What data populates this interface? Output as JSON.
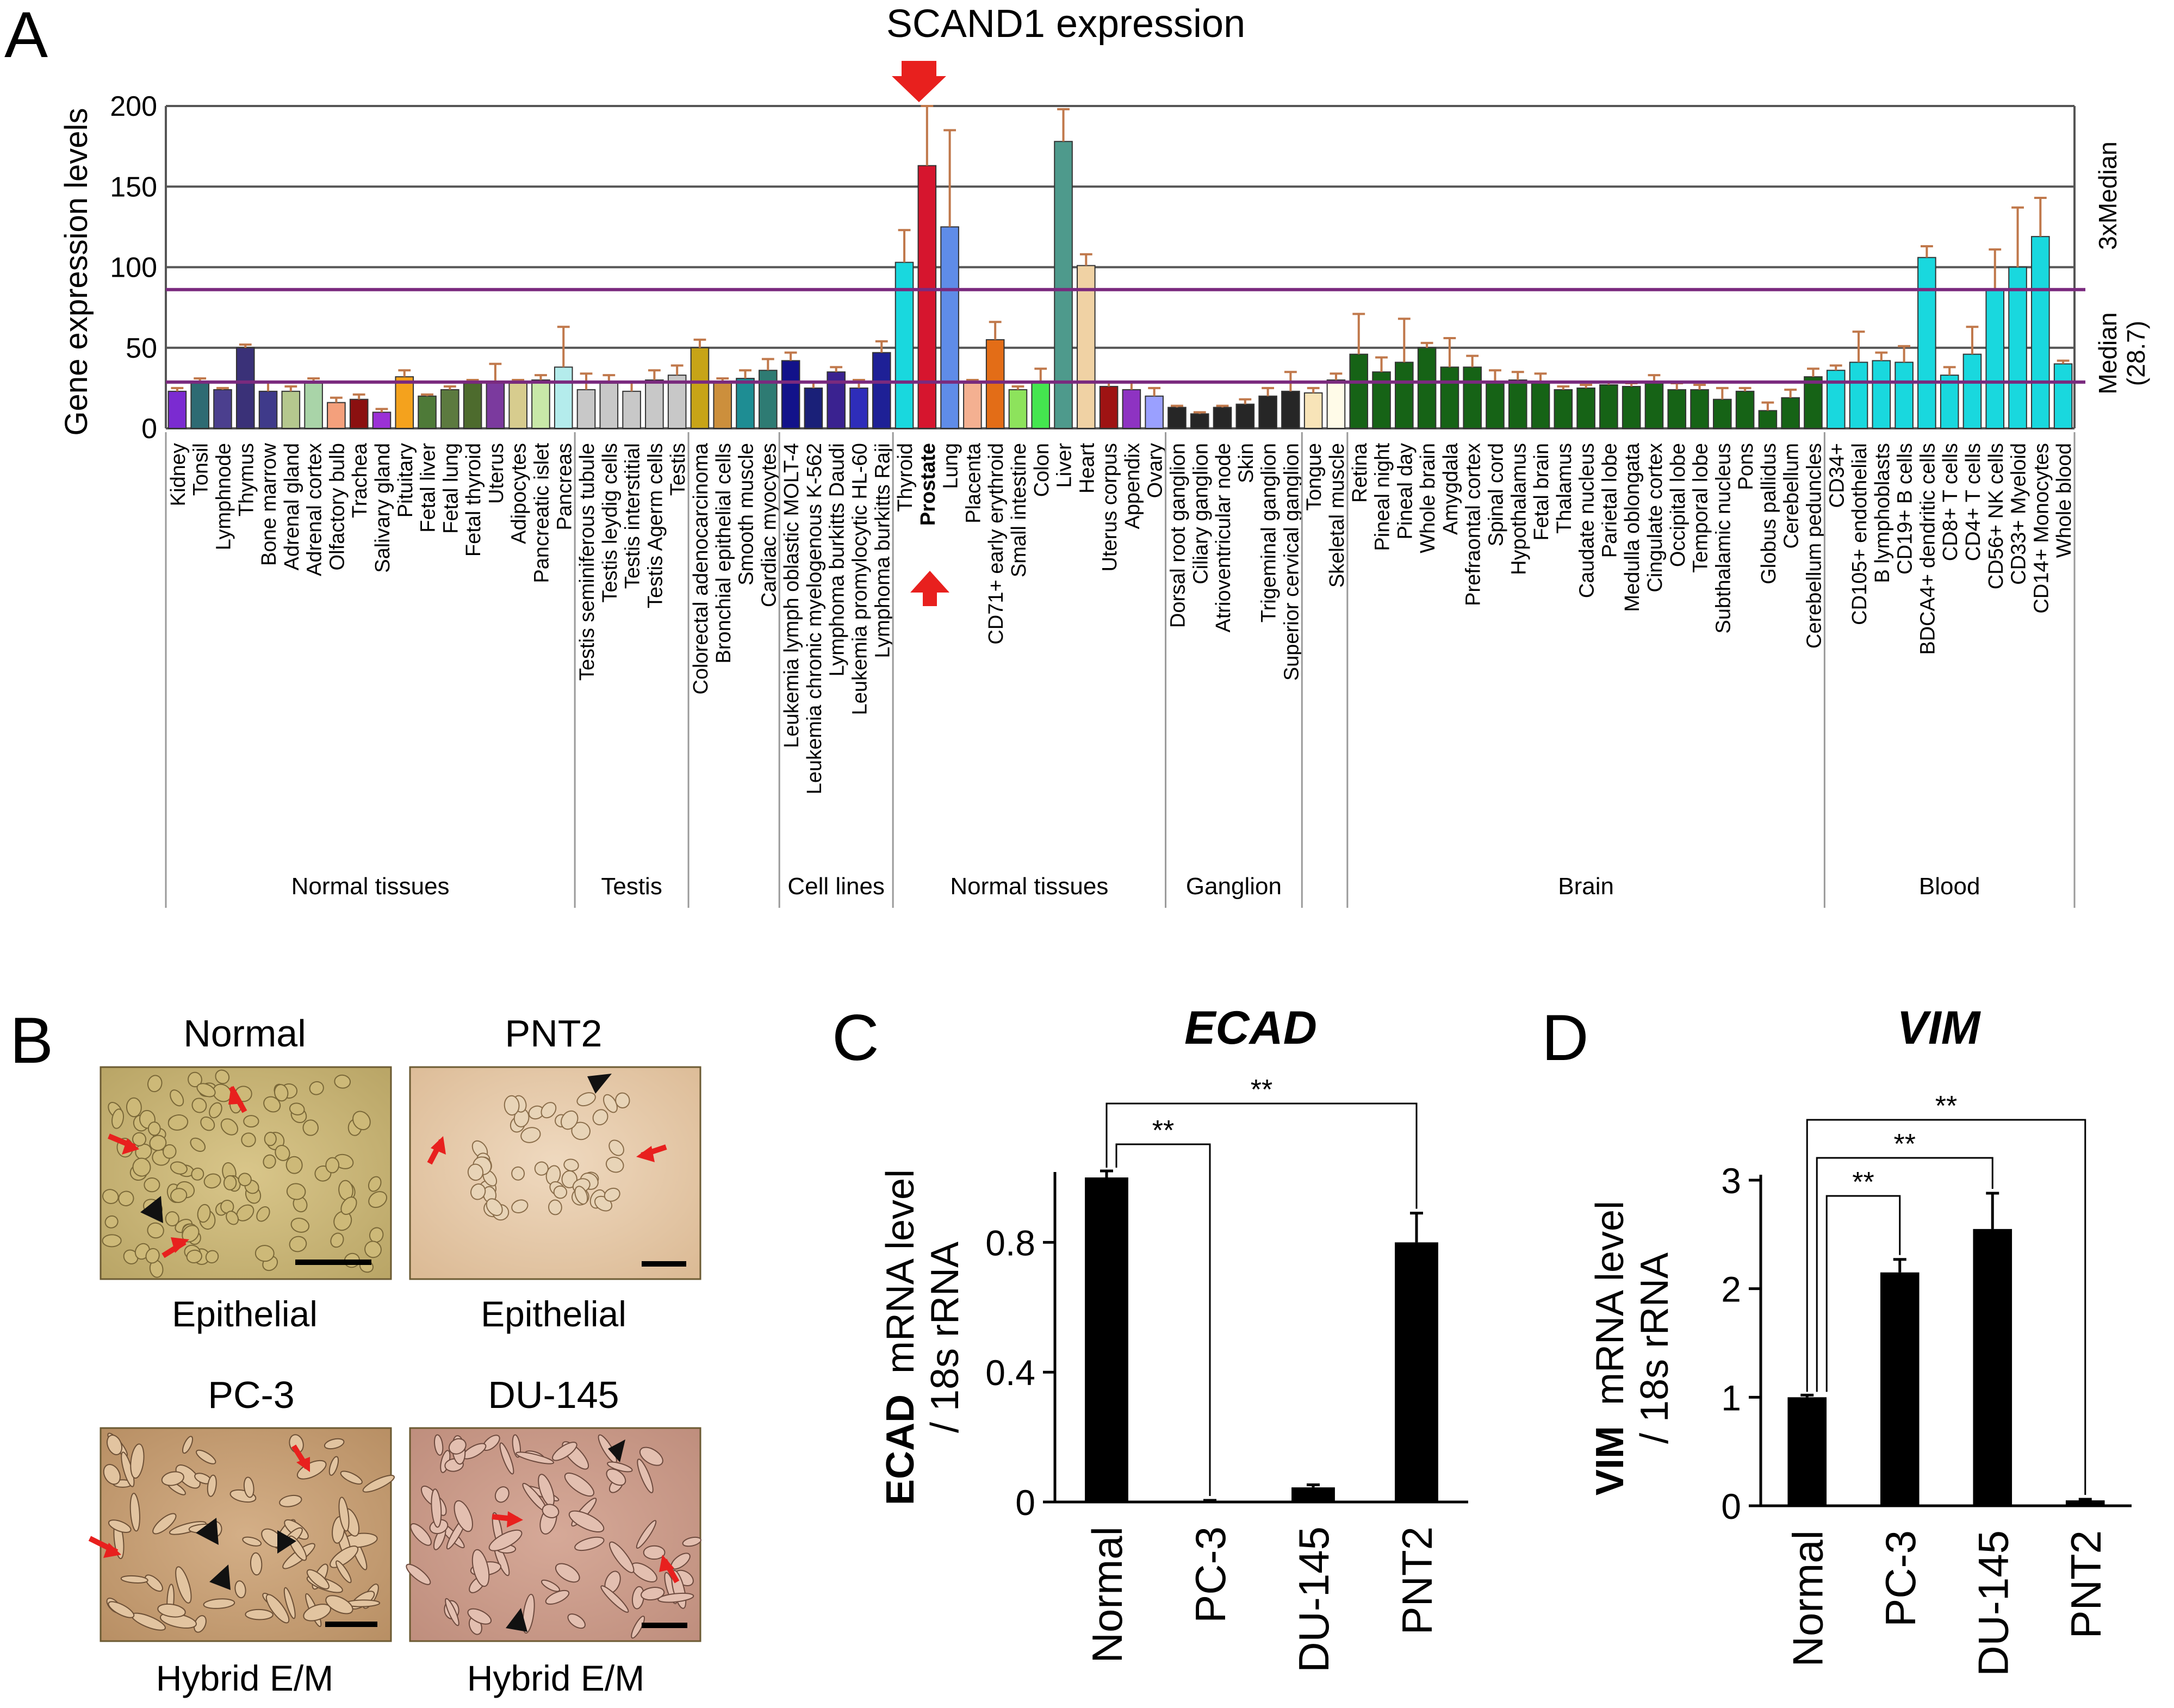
{
  "figure": {
    "panel_labels": [
      "A",
      "B",
      "C",
      "D"
    ],
    "colors": {
      "text": "#000000",
      "median_line": "#7a2a7e",
      "error_bar": "#c0784b",
      "grid": "#555555",
      "arrow": "#e8201e",
      "annot_purple": "#8e44ad"
    }
  },
  "panel_a": {
    "title": "SCAND1 expression",
    "median_label": "Median",
    "median_value": "(28.7)",
    "three_x_label": "3xMedian",
    "bold_category": "Prostate"
  },
  "panel_b": {
    "images": [
      {
        "title": "Normal",
        "caption": "Epithelial"
      },
      {
        "title": "PNT2",
        "caption": "Epithelial"
      },
      {
        "title": "PC-3",
        "caption": "Hybrid E/M"
      },
      {
        "title": "DU-145",
        "caption": "Hybrid E/M"
      }
    ]
  },
  "chart_data": [
    {
      "panel": "A",
      "type": "bar",
      "title": "SCAND1 expression",
      "xlabel": "",
      "ylabel": "Gene expression levels",
      "ylim": [
        0,
        200
      ],
      "yticks": [
        0,
        50,
        100,
        150,
        200
      ],
      "grid": true,
      "reference_lines": [
        {
          "name": "Median (28.7)",
          "value": 28.7
        },
        {
          "name": "3xMedian",
          "value": 86.1
        }
      ],
      "categories": [
        "Kidney",
        "Tonsil",
        "Lymphnode",
        "Thymus",
        "Bone marrow",
        "Adrenal gland",
        "Adrenal cortex",
        "Olfactory bulb",
        "Trachea",
        "Salivary gland",
        "Pituitary",
        "Fetal liver",
        "Fetal lung",
        "Fetal thyroid",
        "Uterus",
        "Adipocytes",
        "Pancreatic islet",
        "Pancreas",
        "Testis seminiferous tubule",
        "Testis leydig cells",
        "Testis interstitial",
        "Testis Agerm cells",
        "Testis",
        "Colorectal adenocarcinoma",
        "Bronchial epithelial cells",
        "Smooth muscle",
        "Cardiac myocytes",
        "Leukemia lymph oblastic MOLT-4",
        "Leukemia chronic myelogenous K-562",
        "Lymphoma burkitts Daudi",
        "Leukemia promylocytic HL-60",
        "Lymphoma burkitts Raji",
        "Thyroid",
        "Prostate",
        "Lung",
        "Placenta",
        "CD71+ early erythroid",
        "Small intestine",
        "Colon",
        "Liver",
        "Heart",
        "Uterus corpus",
        "Appendix",
        "Ovary",
        "Dorsal root ganglion",
        "Ciliary ganglion",
        "Atrioventricular node",
        "Skin",
        "Trigeminal ganglion",
        "Superior cervical ganglion",
        "Tongue",
        "Skeletal muscle",
        "Retina",
        "Pineal night",
        "Pineal day",
        "Whole brain",
        "Amygdala",
        "Prefraontal cortex",
        "Spinal cord",
        "Hypothalamus",
        "Fetal brain",
        "Thalamus",
        "Caudate nucleus",
        "Parietal lobe",
        "Medulla oblongata",
        "Cingulate cortex",
        "Occipital lobe",
        "Temporal lobe",
        "Subthalamic nucleus",
        "Pons",
        "Globus pallidus",
        "Cerebellum",
        "Cerebellum peduncles",
        "CD34+",
        "CD105+ endothelial",
        "B lymphoblasts",
        "CD19+ B cells",
        "BDCA4+ dendritic cells",
        "CD8+ T cells",
        "CD4+ T cells",
        "CD56+ NK cells",
        "CD33+ Myeloid",
        "CD14+ Monocytes",
        "Whole blood"
      ],
      "values": [
        23,
        29,
        24,
        50,
        23,
        23,
        28,
        16,
        18,
        10,
        32,
        20,
        24,
        28,
        29,
        28,
        30,
        38,
        24,
        28,
        23,
        30,
        33,
        50,
        29,
        31,
        36,
        42,
        25,
        35,
        25,
        47,
        103,
        163,
        125,
        28,
        55,
        24,
        29,
        178,
        101,
        26,
        24,
        20,
        13,
        9,
        13,
        15,
        20,
        23,
        22,
        30,
        46,
        35,
        41,
        50,
        38,
        38,
        29,
        30,
        28,
        24,
        25,
        27,
        26,
        29,
        24,
        24,
        18,
        23,
        11,
        19,
        32,
        36,
        41,
        42,
        41,
        106,
        33,
        46,
        86,
        100,
        119,
        40
      ],
      "errors": [
        2,
        2,
        1,
        2,
        6,
        3,
        3,
        3,
        3,
        2,
        4,
        1,
        2,
        2,
        11,
        2,
        3,
        25,
        10,
        5,
        6,
        6,
        6,
        5,
        2,
        5,
        7,
        5,
        4,
        3,
        5,
        7,
        20,
        37,
        60,
        2,
        11,
        2,
        8,
        20,
        7,
        3,
        5,
        5,
        1,
        1,
        1,
        3,
        5,
        12,
        3,
        4,
        25,
        9,
        27,
        3,
        18,
        7,
        7,
        5,
        6,
        2,
        2,
        2,
        2,
        4,
        4,
        3,
        7,
        2,
        5,
        5,
        5,
        3,
        19,
        5,
        10,
        7,
        5,
        17,
        25,
        37,
        24,
        2
      ],
      "colors": [
        "#7b2bd1",
        "#2e6b73",
        "#4b3f8e",
        "#3a3178",
        "#3f3a8a",
        "#b5c88e",
        "#a9d4a8",
        "#f4a07c",
        "#8b1010",
        "#9b31d6",
        "#f4a21d",
        "#4e7a38",
        "#5c7a3f",
        "#4d6b2d",
        "#7b3a9e",
        "#d7cc8e",
        "#c8e8a8",
        "#b4ecec",
        "#c8c8c8",
        "#c8c8c8",
        "#c8c8c8",
        "#c8c8c8",
        "#c8c8c8",
        "#c7a417",
        "#cc8f3c",
        "#1e8d93",
        "#2e7b73",
        "#12128a",
        "#1a2078",
        "#3a2290",
        "#2e2dba",
        "#1e2096",
        "#19d8de",
        "#d6152e",
        "#5f8ce8",
        "#f4b091",
        "#e36d17",
        "#8de35c",
        "#44e64f",
        "#4e9a8c",
        "#f0d2a4",
        "#9e1313",
        "#8e33c2",
        "#9aa0ff",
        "#262626",
        "#262626",
        "#262626",
        "#262626",
        "#262626",
        "#262626",
        "#f8e4b8",
        "#fffbe8",
        "#166316",
        "#166316",
        "#166316",
        "#166316",
        "#166316",
        "#166316",
        "#166316",
        "#166316",
        "#166316",
        "#166316",
        "#166316",
        "#166316",
        "#166316",
        "#166316",
        "#166316",
        "#166316",
        "#166316",
        "#166316",
        "#166316",
        "#166316",
        "#166316",
        "#19d8de",
        "#19d8de",
        "#19d8de",
        "#19d8de",
        "#19d8de",
        "#19d8de",
        "#19d8de",
        "#19d8de",
        "#19d8de",
        "#19d8de",
        "#19d8de"
      ],
      "groups": [
        {
          "label": "Normal tissues",
          "range": [
            0,
            17
          ]
        },
        {
          "label": "Testis",
          "range": [
            18,
            22
          ]
        },
        {
          "label": "",
          "range": [
            23,
            26
          ]
        },
        {
          "label": "Cell lines",
          "range": [
            27,
            31
          ]
        },
        {
          "label": "Normal tissues",
          "range": [
            32,
            43
          ]
        },
        {
          "label": "Ganglion",
          "range": [
            44,
            49
          ]
        },
        {
          "label": "",
          "range": [
            50,
            51
          ]
        },
        {
          "label": "Brain",
          "range": [
            52,
            72
          ]
        },
        {
          "label": "Blood",
          "range": [
            73,
            83
          ]
        }
      ]
    },
    {
      "panel": "C",
      "type": "bar",
      "title": "ECAD",
      "xlabel": "",
      "ylabel_bold": "ECAD",
      "ylabel_rest": "mRNA level",
      "ylabel_line2": "/ 18s rRNA",
      "ylim": [
        0,
        1.0
      ],
      "yticks": [
        0,
        0.4,
        0.8
      ],
      "ytick_labels": [
        "0",
        "0.4",
        "0.8"
      ],
      "categories": [
        "Normal",
        "PC-3",
        "DU-145",
        "PNT2"
      ],
      "values": [
        1.0,
        0.004,
        0.045,
        0.8
      ],
      "errors": [
        0.02,
        0.001,
        0.008,
        0.09
      ],
      "significance": [
        {
          "from": "Normal",
          "to": "PC-3",
          "label": "**"
        },
        {
          "from": "Normal",
          "to": "PNT2",
          "label": "**"
        }
      ]
    },
    {
      "panel": "D",
      "type": "bar",
      "title": "VIM",
      "xlabel": "",
      "ylabel_bold": "VIM",
      "ylabel_rest": "mRNA level",
      "ylabel_line2": "/ 18s rRNA",
      "ylim": [
        0,
        3.0
      ],
      "yticks": [
        0,
        1,
        2,
        3
      ],
      "ytick_labels": [
        "0",
        "1",
        "2",
        "3"
      ],
      "categories": [
        "Normal",
        "PC-3",
        "DU-145",
        "PNT2"
      ],
      "values": [
        1.0,
        2.15,
        2.55,
        0.05
      ],
      "errors": [
        0.02,
        0.12,
        0.33,
        0.01
      ],
      "significance": [
        {
          "from": "Normal",
          "to": "PC-3",
          "label": "**"
        },
        {
          "from": "Normal",
          "to": "DU-145",
          "label": "**"
        },
        {
          "from": "Normal",
          "to": "PNT2",
          "label": "**"
        }
      ]
    }
  ]
}
